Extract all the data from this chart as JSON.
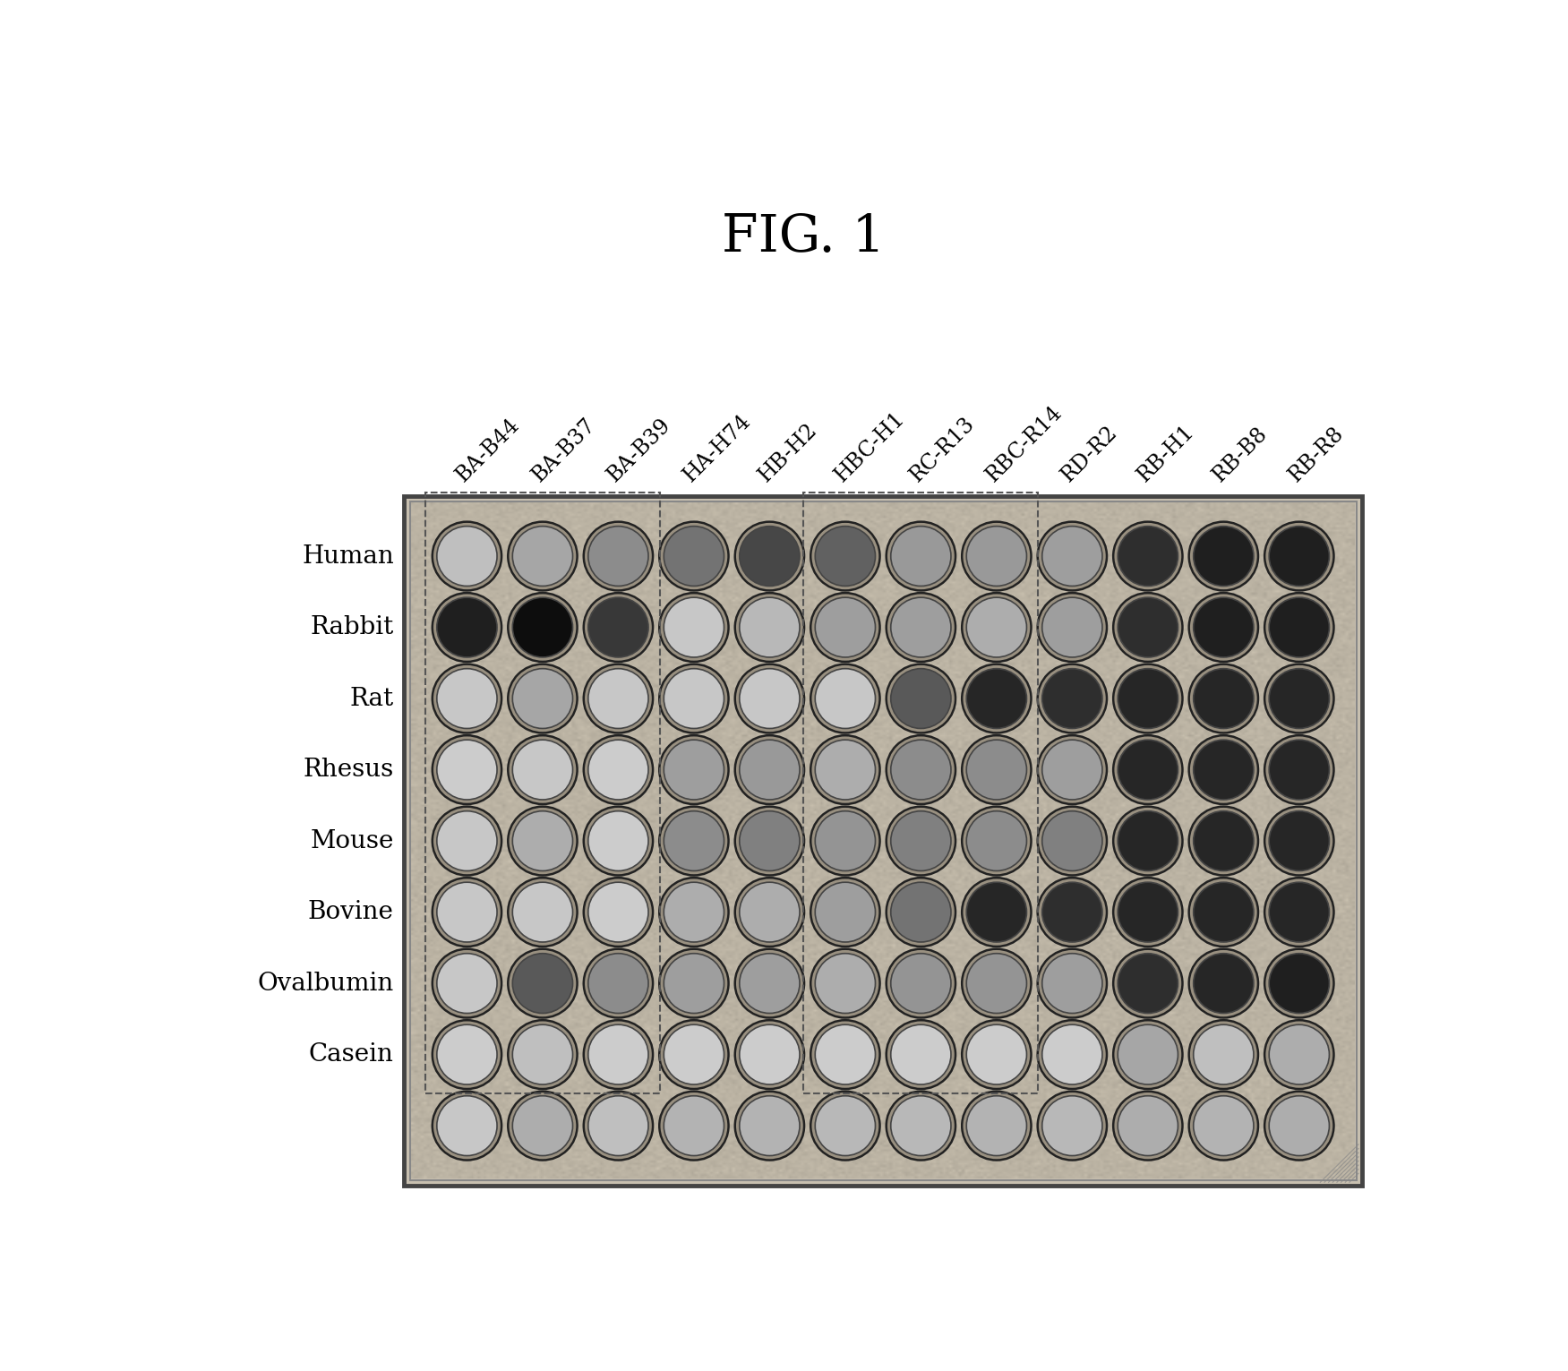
{
  "title": "FIG. 1",
  "col_labels": [
    "BA-B44",
    "BA-B37",
    "BA-B39",
    "HA-H74",
    "HB-H2",
    "HBC-H1",
    "RC-R13",
    "RBC-R14",
    "RD-R2",
    "RB-H1",
    "RB-B8",
    "RB-R8"
  ],
  "row_labels": [
    "Human",
    "Rabbit",
    "Rat",
    "Rhesus",
    "Mouse",
    "Bovine",
    "Ovalbumin",
    "Casein",
    ""
  ],
  "n_rows": 9,
  "n_cols": 12,
  "title_fontsize": 42,
  "label_fontsize": 20,
  "col_label_fontsize": 17,
  "dot_intensities": [
    [
      0.25,
      0.35,
      0.45,
      0.55,
      0.72,
      0.62,
      0.4,
      0.4,
      0.38,
      0.82,
      0.88,
      0.88
    ],
    [
      0.88,
      0.95,
      0.78,
      0.22,
      0.28,
      0.38,
      0.38,
      0.32,
      0.38,
      0.82,
      0.88,
      0.88
    ],
    [
      0.22,
      0.35,
      0.22,
      0.22,
      0.22,
      0.22,
      0.65,
      0.85,
      0.82,
      0.85,
      0.85,
      0.85
    ],
    [
      0.2,
      0.22,
      0.2,
      0.38,
      0.4,
      0.32,
      0.45,
      0.45,
      0.38,
      0.85,
      0.85,
      0.85
    ],
    [
      0.22,
      0.32,
      0.2,
      0.45,
      0.5,
      0.42,
      0.5,
      0.45,
      0.5,
      0.85,
      0.85,
      0.85
    ],
    [
      0.22,
      0.22,
      0.2,
      0.32,
      0.32,
      0.38,
      0.55,
      0.85,
      0.82,
      0.85,
      0.85,
      0.85
    ],
    [
      0.22,
      0.65,
      0.45,
      0.38,
      0.38,
      0.32,
      0.42,
      0.42,
      0.38,
      0.82,
      0.85,
      0.88
    ],
    [
      0.2,
      0.25,
      0.2,
      0.2,
      0.2,
      0.2,
      0.2,
      0.2,
      0.2,
      0.35,
      0.25,
      0.32
    ],
    [
      0.22,
      0.32,
      0.25,
      0.3,
      0.3,
      0.28,
      0.28,
      0.3,
      0.28,
      0.32,
      0.3,
      0.32
    ]
  ],
  "fig_bg": "#ffffff",
  "plate_bg": "#c8c0b0",
  "plate_border_outer": "#444444",
  "plate_border_inner": "#888888",
  "circle_outer_color": "#999080",
  "circle_edge_color": "#333333"
}
